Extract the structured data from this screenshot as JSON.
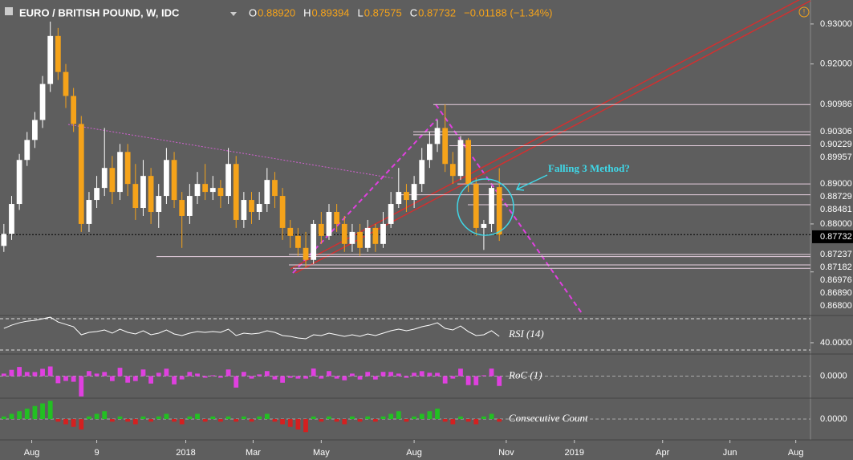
{
  "header": {
    "title": "EURO / BRITISH POUND, W, IDC",
    "ohlc": [
      {
        "label": "O",
        "value": "0.88920"
      },
      {
        "label": "H",
        "value": "0.89394"
      },
      {
        "label": "L",
        "value": "0.87575"
      },
      {
        "label": "C",
        "value": "0.87732"
      }
    ],
    "change": "−0.01188 (−1.34%)"
  },
  "chart_data": [
    {
      "type": "candlestick",
      "up_color": "#ffffff",
      "down_color": "#f5a31a",
      "open": [
        0.8745,
        0.8775,
        0.885,
        0.896,
        0.901,
        0.906,
        0.915,
        0.927,
        0.918,
        0.912,
        0.905,
        0.88,
        0.886,
        0.889,
        0.894,
        0.888,
        0.898,
        0.89,
        0.884,
        0.892,
        0.883,
        0.887,
        0.896,
        0.886,
        0.882,
        0.887,
        0.89,
        0.888,
        0.889,
        0.887,
        0.895,
        0.881,
        0.886,
        0.883,
        0.885,
        0.891,
        0.887,
        0.879,
        0.877,
        0.874,
        0.871,
        0.88,
        0.877,
        0.883,
        0.88,
        0.875,
        0.878,
        0.874,
        0.879,
        0.875,
        0.88,
        0.885,
        0.888,
        0.886,
        0.89,
        0.896,
        0.9,
        0.904,
        0.895,
        0.892,
        0.901,
        0.89,
        0.879,
        0.88,
        0.8892
      ],
      "high": [
        0.88,
        0.887,
        0.8975,
        0.903,
        0.908,
        0.917,
        0.9306,
        0.929,
        0.92,
        0.914,
        0.907,
        0.888,
        0.892,
        0.904,
        0.897,
        0.9,
        0.9,
        0.895,
        0.896,
        0.894,
        0.89,
        0.899,
        0.898,
        0.888,
        0.89,
        0.893,
        0.895,
        0.892,
        0.891,
        0.899,
        0.897,
        0.888,
        0.888,
        0.888,
        0.894,
        0.893,
        0.889,
        0.881,
        0.879,
        0.878,
        0.881,
        0.883,
        0.885,
        0.885,
        0.882,
        0.88,
        0.88,
        0.881,
        0.88,
        0.883,
        0.888,
        0.894,
        0.89,
        0.892,
        0.899,
        0.903,
        0.906,
        0.9099,
        0.898,
        0.902,
        0.9015,
        0.8915,
        0.881,
        0.8895,
        0.89394
      ],
      "low": [
        0.873,
        0.876,
        0.8835,
        0.8945,
        0.899,
        0.904,
        0.913,
        0.916,
        0.909,
        0.903,
        0.878,
        0.878,
        0.884,
        0.887,
        0.885,
        0.886,
        0.887,
        0.881,
        0.882,
        0.88,
        0.879,
        0.885,
        0.884,
        0.874,
        0.88,
        0.885,
        0.886,
        0.886,
        0.884,
        0.885,
        0.879,
        0.879,
        0.88,
        0.881,
        0.883,
        0.884,
        0.876,
        0.874,
        0.872,
        0.8693,
        0.87,
        0.875,
        0.876,
        0.878,
        0.873,
        0.873,
        0.872,
        0.873,
        0.873,
        0.874,
        0.879,
        0.884,
        0.883,
        0.884,
        0.888,
        0.894,
        0.898,
        0.893,
        0.89,
        0.891,
        0.888,
        0.877,
        0.8735,
        0.878,
        0.87575
      ],
      "close": [
        0.8775,
        0.885,
        0.896,
        0.901,
        0.906,
        0.915,
        0.927,
        0.918,
        0.912,
        0.905,
        0.88,
        0.886,
        0.889,
        0.894,
        0.888,
        0.898,
        0.89,
        0.884,
        0.892,
        0.883,
        0.887,
        0.896,
        0.886,
        0.882,
        0.887,
        0.89,
        0.888,
        0.889,
        0.887,
        0.895,
        0.881,
        0.886,
        0.883,
        0.885,
        0.891,
        0.887,
        0.879,
        0.877,
        0.874,
        0.871,
        0.88,
        0.877,
        0.883,
        0.88,
        0.875,
        0.878,
        0.874,
        0.879,
        0.875,
        0.88,
        0.885,
        0.888,
        0.886,
        0.89,
        0.896,
        0.9,
        0.904,
        0.895,
        0.892,
        0.901,
        0.89,
        0.879,
        0.88,
        0.889,
        0.87732
      ],
      "ylim": [
        0.8571,
        0.936
      ],
      "yticks": [
        {
          "value": 0.93,
          "label": "0.93000"
        },
        {
          "value": 0.92,
          "label": "0.92000"
        },
        {
          "value": 0.90986,
          "label": "0.90986"
        },
        {
          "value": 0.90306,
          "label": "0.90306"
        },
        {
          "value": 0.90229,
          "label": "0.90229"
        },
        {
          "value": 0.89957,
          "label": "0.89957"
        },
        {
          "value": 0.89,
          "label": "0.89000"
        },
        {
          "value": 0.88729,
          "label": "0.88729"
        },
        {
          "value": 0.88481,
          "label": "0.88481"
        },
        {
          "value": 0.88,
          "label": "0.88000"
        },
        {
          "value": 0.87732,
          "label": "0.87732"
        },
        {
          "value": 0.87237,
          "label": "0.87237"
        },
        {
          "value": 0.87182,
          "label": "0.87182"
        },
        {
          "value": 0.86976,
          "label": "0.86976"
        },
        {
          "value": 0.8689,
          "label": "0.86890"
        },
        {
          "value": 0.868,
          "label": "0.86800"
        }
      ],
      "xlim": [
        -0.5,
        104.2
      ],
      "xticks": [
        {
          "value": 3.6,
          "label": "Aug"
        },
        {
          "value": 12,
          "label": "9"
        },
        {
          "value": 23.5,
          "label": "2018"
        },
        {
          "value": 32.2,
          "label": "Mar"
        },
        {
          "value": 41,
          "label": "May"
        },
        {
          "value": 53,
          "label": "Aug"
        },
        {
          "value": 64.9,
          "label": "Nov"
        },
        {
          "value": 73.7,
          "label": "2019"
        },
        {
          "value": 85.1,
          "label": "Apr"
        },
        {
          "value": 93.8,
          "label": "Jun"
        },
        {
          "value": 102.3,
          "label": "Aug"
        }
      ],
      "annotation": "Falling 3 Method?"
    },
    {
      "type": "line",
      "name": "RSI (14)",
      "color": "#ffffff",
      "values": [
        58,
        62,
        65,
        67,
        68,
        70,
        72,
        66,
        63,
        60,
        50,
        53,
        54,
        56,
        52,
        57,
        53,
        51,
        55,
        50,
        52,
        56,
        51,
        49,
        52,
        54,
        53,
        54,
        53,
        57,
        49,
        52,
        51,
        52,
        55,
        53,
        49,
        48,
        46,
        45,
        50,
        49,
        52,
        50,
        48,
        50,
        48,
        51,
        49,
        52,
        55,
        57,
        55,
        57,
        60,
        62,
        65,
        58,
        56,
        61,
        54,
        49,
        50,
        55,
        48
      ],
      "ylim": [
        25.9,
        74.1
      ],
      "yticks": [
        {
          "value": 40,
          "label": "40.0000"
        }
      ]
    },
    {
      "type": "bar",
      "name": "RoC (1)",
      "color": "#e040e0",
      "values": [
        0.34,
        0.85,
        1.24,
        0.56,
        0.55,
        0.99,
        1.31,
        -0.97,
        -0.65,
        -0.77,
        -2.76,
        0.68,
        0.34,
        0.56,
        -0.67,
        1.13,
        -0.89,
        -0.67,
        0.9,
        -1.01,
        0.45,
        1.01,
        -1.12,
        -0.45,
        0.57,
        0.34,
        -0.22,
        0.11,
        -0.22,
        0.9,
        -1.56,
        0.57,
        -0.34,
        0.23,
        0.68,
        -0.45,
        -0.9,
        -0.23,
        -0.34,
        -0.34,
        1.03,
        -0.34,
        0.68,
        -0.34,
        -0.57,
        0.34,
        -0.46,
        0.57,
        -0.46,
        0.57,
        0.57,
        0.34,
        -0.23,
        0.45,
        0.67,
        0.45,
        0.44,
        -1.0,
        -0.34,
        1.01,
        -1.22,
        -1.24,
        0.11,
        1.02,
        -1.34
      ],
      "ylim": [
        -3,
        3
      ],
      "yticks": [
        {
          "value": 0,
          "label": "0.0000"
        }
      ]
    },
    {
      "type": "bar",
      "name": "Consecutive Count",
      "up_color": "#22c022",
      "down_color": "#d42020",
      "values": [
        1,
        2,
        3,
        4,
        5,
        6,
        7,
        -1,
        -2,
        -3,
        -4,
        1,
        2,
        3,
        -1,
        1,
        -1,
        -2,
        1,
        -1,
        1,
        2,
        -1,
        -2,
        1,
        2,
        -1,
        1,
        -1,
        1,
        -1,
        1,
        -1,
        1,
        2,
        -1,
        -2,
        -3,
        -4,
        -5,
        1,
        -1,
        1,
        -1,
        -2,
        1,
        -1,
        1,
        -1,
        1,
        2,
        3,
        -1,
        1,
        2,
        3,
        4,
        -1,
        -2,
        1,
        -1,
        -2,
        1,
        2,
        -1
      ],
      "ylim": [
        -8,
        8
      ],
      "yticks": [
        {
          "value": 0,
          "label": "0.0000"
        }
      ]
    }
  ]
}
